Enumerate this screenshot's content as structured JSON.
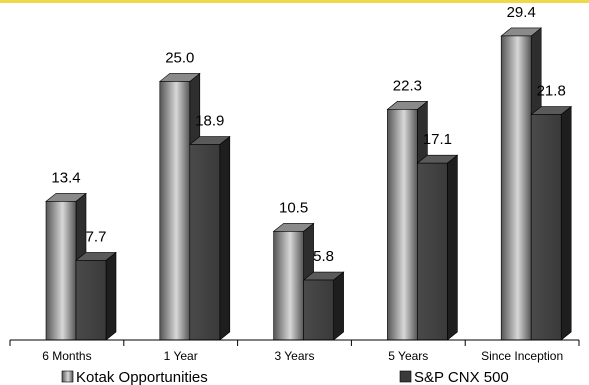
{
  "chart_data": {
    "type": "bar",
    "categories": [
      "6 Months",
      "1 Year",
      "3 Years",
      "5 Years",
      "Since Inception"
    ],
    "series": [
      {
        "name": "Kotak Opportunities",
        "values": [
          13.4,
          25.0,
          10.5,
          22.3,
          29.4
        ],
        "labels": [
          "13.4",
          "25.0",
          "10.5",
          "22.3",
          "29.4"
        ]
      },
      {
        "name": "S&P CNX 500",
        "values": [
          7.7,
          18.9,
          5.8,
          17.1,
          21.8
        ],
        "labels": [
          "7.7",
          "18.9",
          "5.8",
          "17.1",
          "21.8"
        ]
      }
    ],
    "ylim": [
      0,
      30
    ],
    "grid": false,
    "legend_position": "bottom",
    "title": "",
    "xlabel": "",
    "ylabel": "",
    "colors": {
      "top_border": "#f0d84a",
      "series1_light": "#d8d8d8",
      "series1_dark": "#555555",
      "series1_side": "#2e2e2e",
      "series2_front": "#3a3a3a",
      "series2_side": "#1e1e1e",
      "axis": "#000000"
    }
  }
}
